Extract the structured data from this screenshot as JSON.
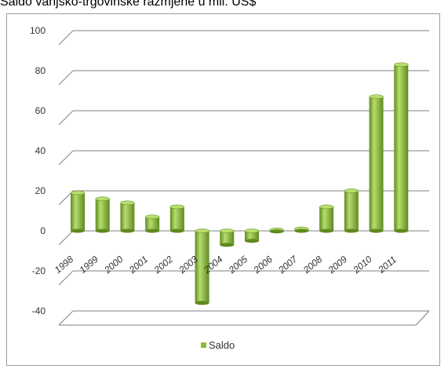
{
  "title": "Saldo vanjsko-trgovinske razmjene u mil. US$",
  "colors": {
    "bar": "#8dbb3e",
    "bar_dark": "#5f8a20",
    "bar_light": "#b8dd6e",
    "grid": "#808080"
  },
  "chart_data": {
    "type": "bar",
    "title": "Saldo vanjsko-trgovinske razmjene u mil. US$",
    "xlabel": "",
    "ylabel": "",
    "ylim": [
      -40,
      100
    ],
    "yticks": [
      "100",
      "80",
      "60",
      "40",
      "20",
      "0",
      "-20",
      "-40"
    ],
    "grid": true,
    "legend_position": "bottom",
    "categories": [
      "1998",
      "1999",
      "2000",
      "2001",
      "2002",
      "2003",
      "2004",
      "2005",
      "2006",
      "2007",
      "2008",
      "2009",
      "2010",
      "2011"
    ],
    "series": [
      {
        "name": "Saldo",
        "values": [
          19,
          16,
          14,
          7,
          12,
          -36,
          -7,
          -5,
          0.5,
          1,
          12,
          20,
          67,
          83
        ]
      }
    ]
  }
}
